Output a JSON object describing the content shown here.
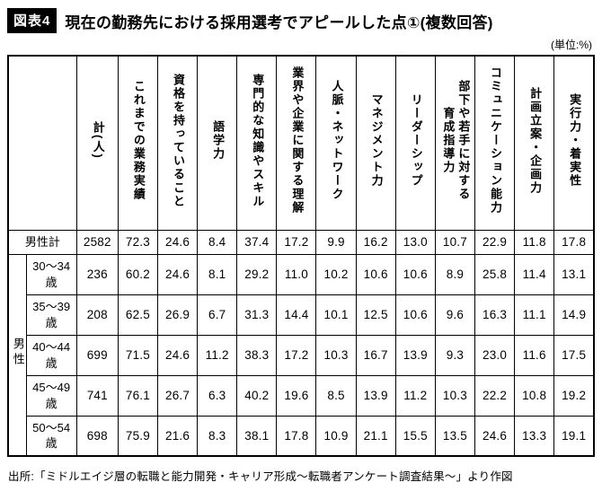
{
  "figure": {
    "badge": "図表4",
    "title": "現在の勤務先における採用選考でアピールした点①(複数回答)",
    "unit": "(単位:%)"
  },
  "chart_data": {
    "type": "table",
    "group_label": "男性",
    "columns": [
      "計(人)",
      "これまでの業務実績",
      "資格を持っていること",
      "語学力",
      "専門的な知識やスキル",
      "業界や企業に関する理解",
      "人脈・ネットワーク",
      "マネジメント力",
      "リーダーシップ",
      "部下や若手に対する\n育成指導力",
      "コミュニケーション能力",
      "計画立案・企画力",
      "実行力・着実性"
    ],
    "rows": [
      {
        "label": "男性計",
        "values": [
          "2582",
          "72.3",
          "24.6",
          "8.4",
          "37.4",
          "17.2",
          "9.9",
          "16.2",
          "13.0",
          "10.7",
          "22.9",
          "11.8",
          "17.8"
        ]
      },
      {
        "label": "30〜34歳",
        "values": [
          "236",
          "60.2",
          "24.6",
          "8.1",
          "29.2",
          "11.0",
          "10.2",
          "10.6",
          "10.6",
          "8.9",
          "25.8",
          "11.4",
          "13.1"
        ]
      },
      {
        "label": "35〜39歳",
        "values": [
          "208",
          "62.5",
          "26.9",
          "6.7",
          "31.3",
          "14.4",
          "10.1",
          "12.5",
          "10.6",
          "9.6",
          "16.3",
          "11.1",
          "14.9"
        ]
      },
      {
        "label": "40〜44歳",
        "values": [
          "699",
          "71.5",
          "24.6",
          "11.2",
          "38.3",
          "17.2",
          "10.3",
          "16.7",
          "13.9",
          "9.3",
          "23.0",
          "11.6",
          "17.5"
        ]
      },
      {
        "label": "45〜49歳",
        "values": [
          "741",
          "76.1",
          "26.7",
          "6.3",
          "40.2",
          "19.6",
          "8.5",
          "13.9",
          "11.2",
          "10.3",
          "22.2",
          "10.8",
          "19.2"
        ]
      },
      {
        "label": "50〜54歳",
        "values": [
          "698",
          "75.9",
          "21.6",
          "8.3",
          "38.1",
          "17.8",
          "10.9",
          "21.1",
          "15.5",
          "13.5",
          "24.6",
          "13.3",
          "19.1"
        ]
      }
    ]
  },
  "footer": {
    "source": "出所:「ミドルエイジ層の転職と能力開発・キャリア形成〜転職者アンケート調査結果〜」より作図"
  }
}
